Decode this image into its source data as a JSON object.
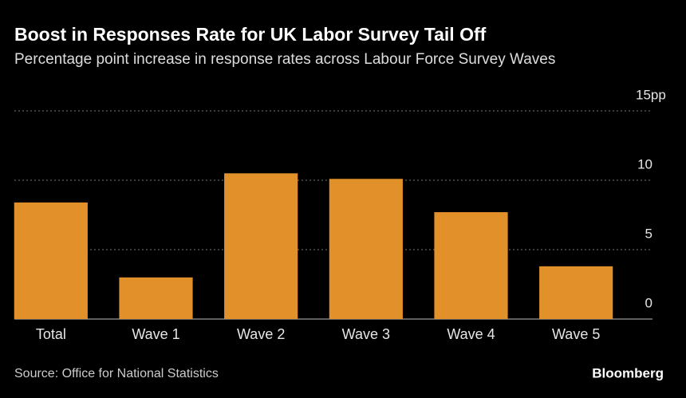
{
  "chart_data": {
    "type": "bar",
    "title": "Boost in Responses Rate for UK Labor Survey Tail Off",
    "subtitle": "Percentage point increase in response rates across Labour Force Survey Waves",
    "categories": [
      "Total",
      "Wave 1",
      "Wave 2",
      "Wave 3",
      "Wave 4",
      "Wave 5"
    ],
    "values": [
      8.4,
      3.0,
      10.5,
      10.1,
      7.7,
      3.8
    ],
    "color": "#e2912a",
    "ylim": [
      0,
      15
    ],
    "yticks": [
      0,
      5,
      10,
      {
        "value": 15,
        "label": "15pp"
      }
    ],
    "grid": true,
    "source": "Source: Office for National Statistics",
    "brand": "Bloomberg"
  }
}
